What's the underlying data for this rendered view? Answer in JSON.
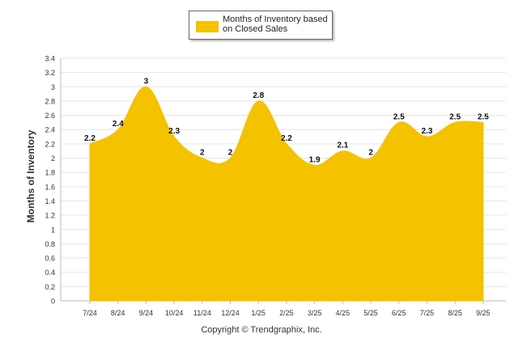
{
  "chart_data": {
    "type": "area",
    "title": "",
    "legend": {
      "label": "Months of Inventory based on Closed Sales",
      "position": "top-center"
    },
    "ylabel": "Months of Inventory",
    "xlabel": "",
    "categories": [
      "7/24",
      "8/24",
      "9/24",
      "10/24",
      "11/24",
      "12/24",
      "1/25",
      "2/25",
      "3/25",
      "4/25",
      "5/25",
      "6/25",
      "7/25",
      "8/25",
      "9/25"
    ],
    "series": [
      {
        "name": "Months of Inventory based on Closed Sales",
        "values": [
          2.2,
          2.4,
          3,
          2.3,
          2,
          2,
          2.8,
          2.2,
          1.9,
          2.1,
          2,
          2.5,
          2.3,
          2.5,
          2.5
        ],
        "labels": [
          "2.2",
          "2.4",
          "3",
          "2.3",
          "2",
          "2",
          "2.8",
          "2.2",
          "1.9",
          "2.1",
          "2",
          "2.5",
          "2.3",
          "2.5",
          "2.5"
        ]
      }
    ],
    "ylim": [
      0,
      3.4
    ],
    "yticks": [
      "0",
      "0.2",
      "0.4",
      "0.6",
      "0.8",
      "1",
      "1.2",
      "1.4",
      "1.6",
      "1.8",
      "2",
      "2.2",
      "2.4",
      "2.6",
      "2.8",
      "3",
      "3.2",
      "3.4"
    ],
    "grid": true
  },
  "colors": {
    "fill": "#F5C200",
    "grid": "#e6e6e6",
    "axis": "#bbbbbb"
  },
  "footer": {
    "copyright": "Copyright © Trendgraphix, Inc."
  }
}
